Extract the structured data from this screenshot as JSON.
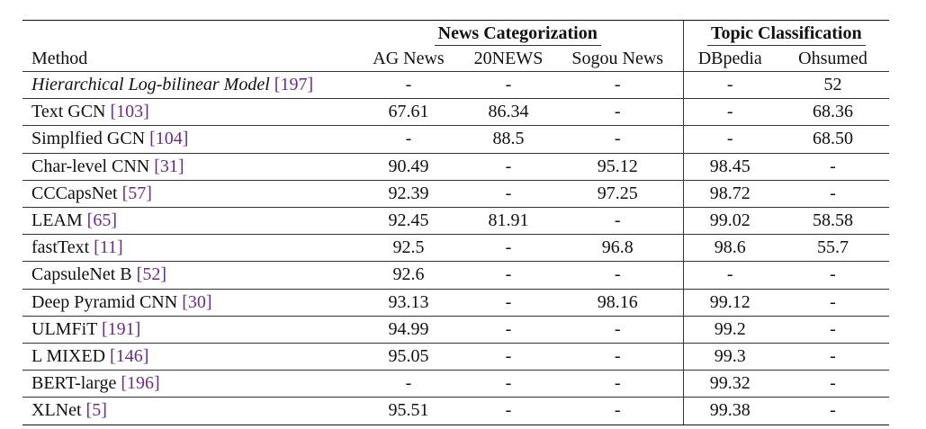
{
  "table": {
    "groups": [
      {
        "label": "News Categorization",
        "span": 3
      },
      {
        "label": "Topic Classification",
        "span": 2
      }
    ],
    "columns": [
      "Method",
      "AG News",
      "20NEWS",
      "Sogou News",
      "DBpedia",
      "Ohsumed"
    ],
    "rows": [
      {
        "method": "Hierarchical Log-bilinear Model",
        "ref": "[197]",
        "italic": true,
        "values": [
          "-",
          "-",
          "-",
          "-",
          "52"
        ]
      },
      {
        "method": "Text GCN",
        "ref": "[103]",
        "values": [
          "67.61",
          "86.34",
          "-",
          "-",
          "68.36"
        ]
      },
      {
        "method": "Simplfied GCN",
        "ref": "[104]",
        "values": [
          "-",
          "88.5",
          "-",
          "-",
          "68.50"
        ]
      },
      {
        "method": "Char-level CNN",
        "ref": "[31]",
        "values": [
          "90.49",
          "-",
          "95.12",
          "98.45",
          "-"
        ]
      },
      {
        "method": "CCCapsNet",
        "ref": "[57]",
        "values": [
          "92.39",
          "-",
          "97.25",
          "98.72",
          "-"
        ]
      },
      {
        "method": "LEAM",
        "ref": "[65]",
        "values": [
          "92.45",
          "81.91",
          "-",
          "99.02",
          "58.58"
        ]
      },
      {
        "method": "fastText",
        "ref": "[11]",
        "values": [
          "92.5",
          "-",
          "96.8",
          "98.6",
          "55.7"
        ]
      },
      {
        "method": "CapsuleNet B",
        "ref": "[52]",
        "values": [
          "92.6",
          "-",
          "-",
          "-",
          "-"
        ]
      },
      {
        "method": "Deep Pyramid CNN",
        "ref": "[30]",
        "values": [
          "93.13",
          "-",
          "98.16",
          "99.12",
          "-"
        ]
      },
      {
        "method": "ULMFiT",
        "ref": "[191]",
        "values": [
          "94.99",
          "-",
          "-",
          "99.2",
          "-"
        ]
      },
      {
        "method": "L MIXED",
        "ref": "[146]",
        "values": [
          "95.05",
          "-",
          "-",
          "99.3",
          "-"
        ]
      },
      {
        "method": "BERT-large",
        "ref": "[196]",
        "values": [
          "-",
          "-",
          "-",
          "99.32",
          "-"
        ]
      },
      {
        "method": "XLNet",
        "ref": "[5]",
        "values": [
          "95.51",
          "-",
          "-",
          "99.38",
          "-"
        ]
      }
    ]
  }
}
